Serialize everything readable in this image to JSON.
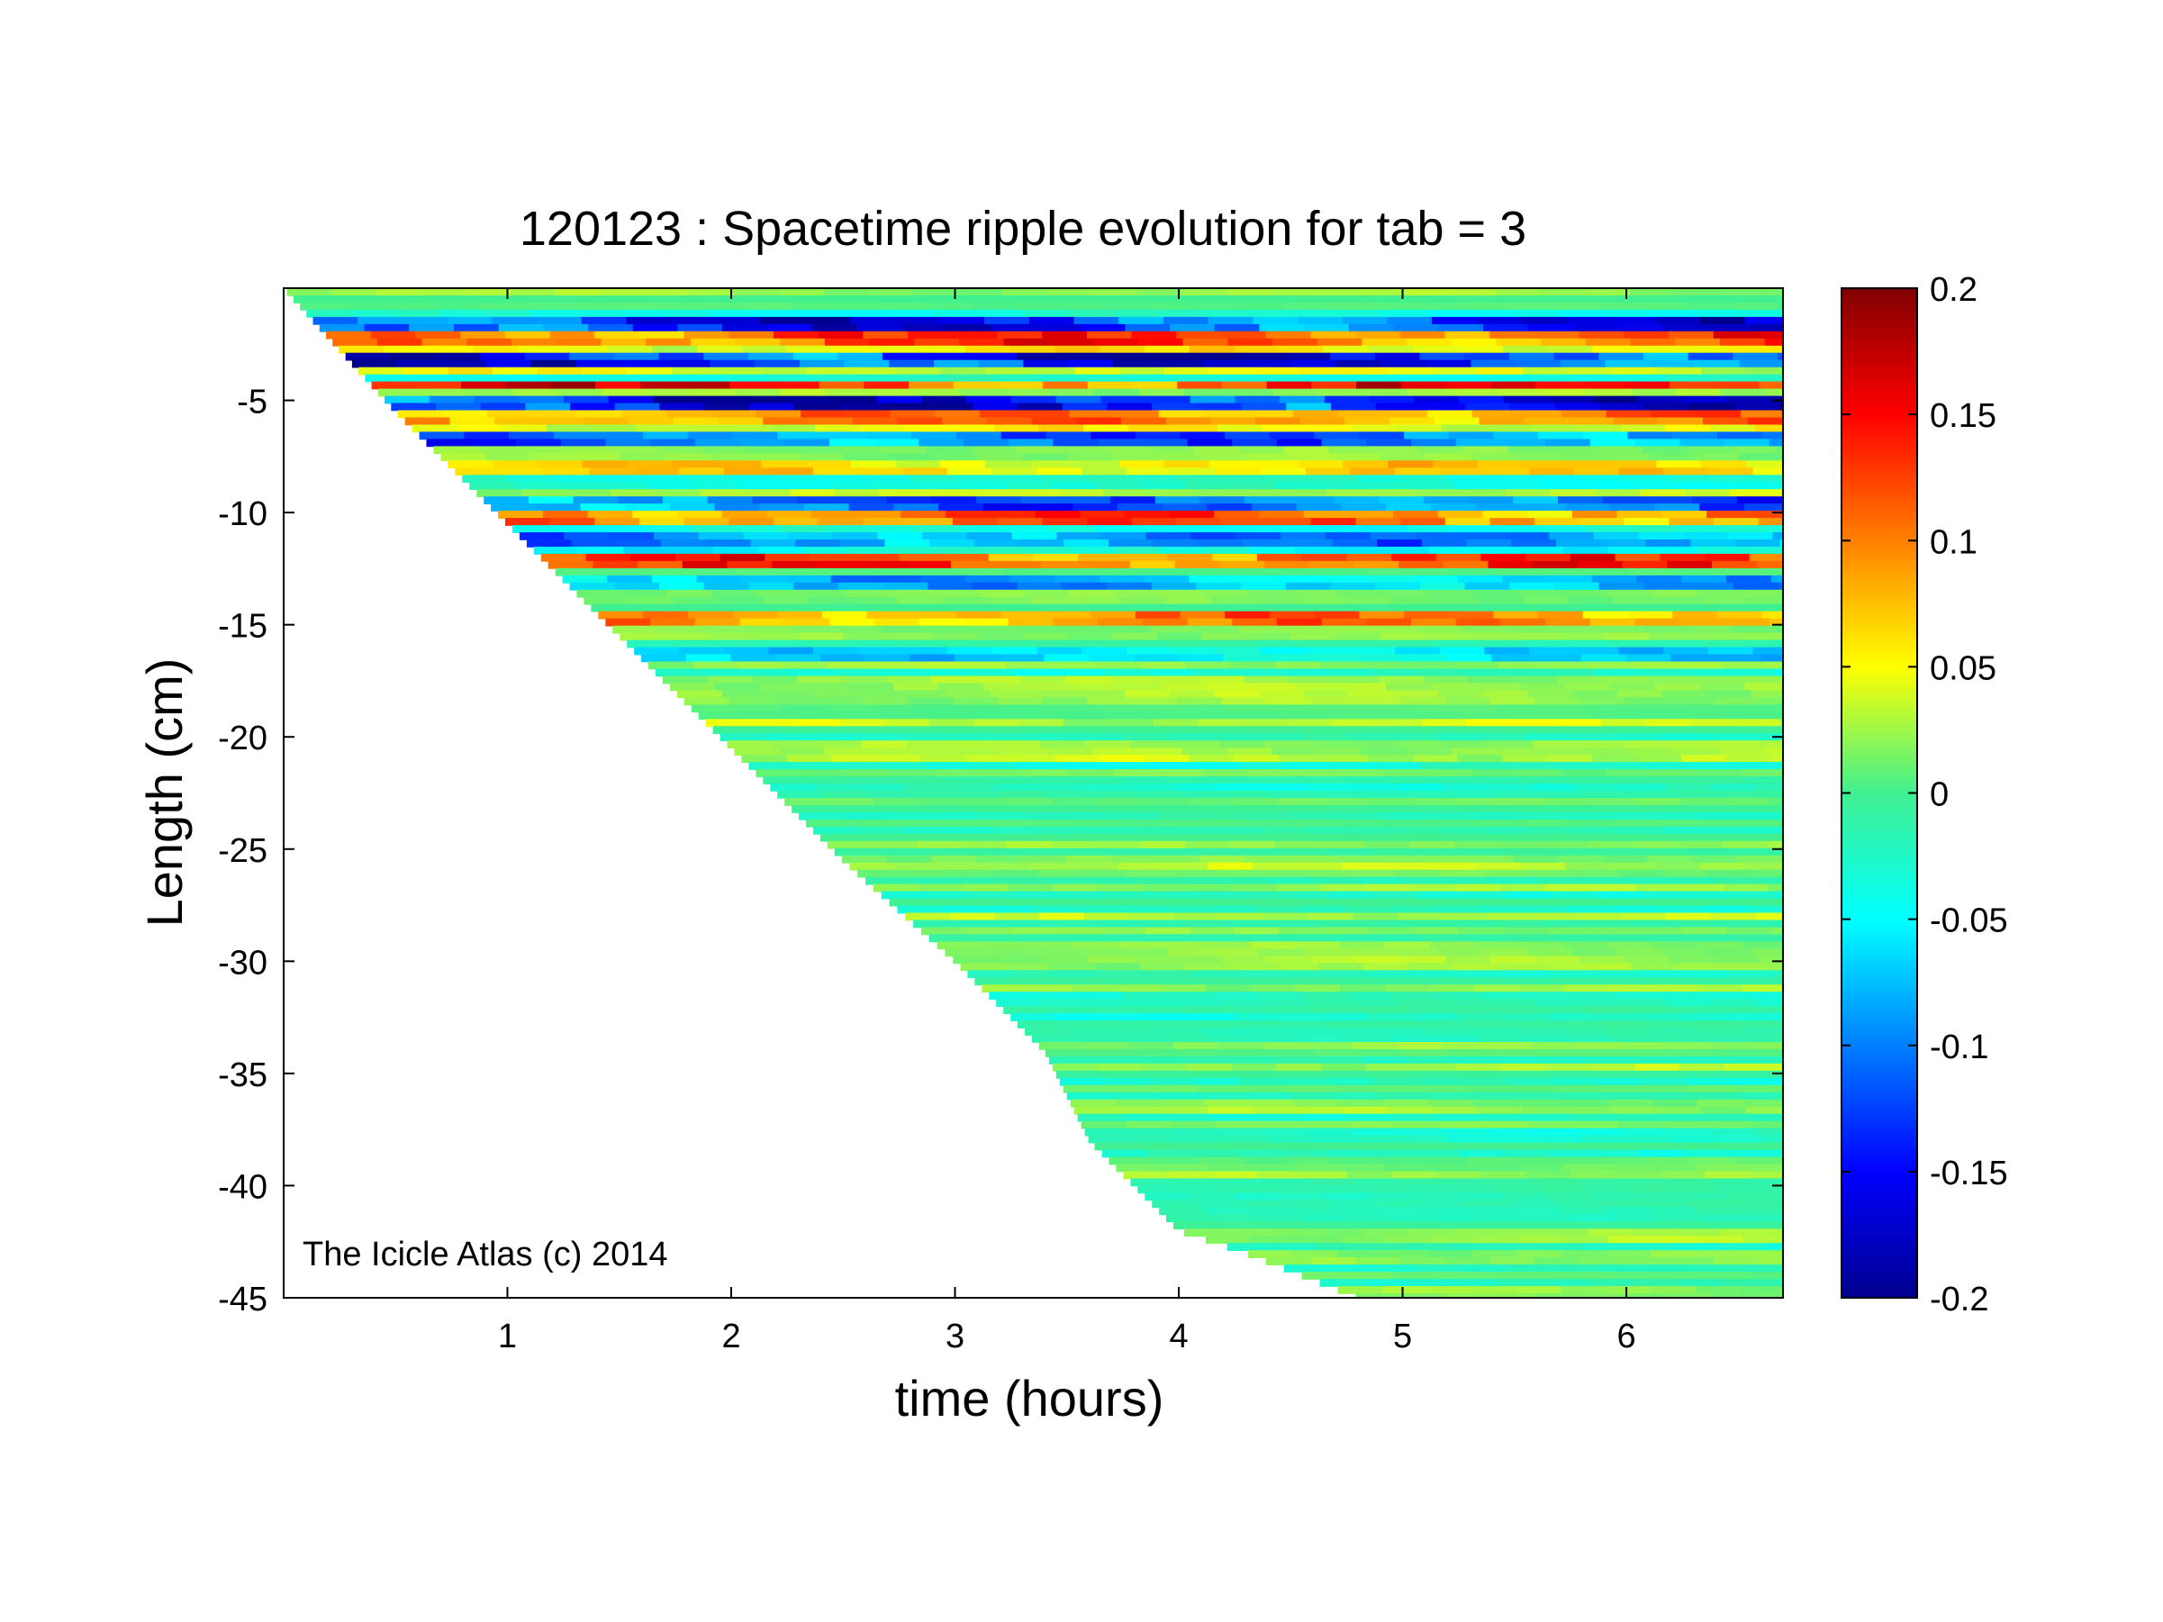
{
  "chart_data": {
    "type": "heatmap",
    "title": "120123 : Spacetime ripple evolution for tab = 3",
    "xlabel": "time (hours)",
    "ylabel": "Length (cm)",
    "xlim": [
      0,
      6.7
    ],
    "ylim": [
      -45,
      0
    ],
    "xticks": [
      1,
      2,
      3,
      4,
      5,
      6
    ],
    "xtick_labels": [
      "1",
      "2",
      "3",
      "4",
      "5",
      "6"
    ],
    "yticks": [
      -5,
      -10,
      -15,
      -20,
      -25,
      -30,
      -35,
      -40,
      -45
    ],
    "ytick_labels": [
      "-5",
      "-10",
      "-15",
      "-20",
      "-25",
      "-30",
      "-35",
      "-40",
      "-45"
    ],
    "colorbar": {
      "colormap": "jet",
      "clim": [
        -0.2,
        0.2
      ],
      "ticks": [
        0.2,
        0.15,
        0.1,
        0.05,
        0,
        -0.05,
        -0.1,
        -0.15,
        -0.2
      ],
      "tick_labels": [
        "0.2",
        "0.15",
        "0.1",
        "0.05",
        "0",
        "-0.05",
        "-0.1",
        "-0.15",
        "-0.2"
      ]
    },
    "data_boundary": {
      "description_points_time": [
        0,
        0.5,
        1.0,
        1.5,
        2.0,
        2.5,
        3.0,
        3.4,
        3.6,
        4.0,
        4.3,
        4.8,
        6.7
      ],
      "description_points_length": [
        0,
        -5.5,
        -10.5,
        -15.5,
        -20.5,
        -25.5,
        -30,
        -34,
        -38,
        -42,
        -43,
        -45,
        -45
      ]
    },
    "strong_ripples": [
      {
        "length": -1.5,
        "amplitude": -0.18
      },
      {
        "length": -2.2,
        "amplitude": 0.15
      },
      {
        "length": -3.2,
        "amplitude": -0.19
      },
      {
        "length": -4.3,
        "amplitude": 0.17
      },
      {
        "length": -5.0,
        "amplitude": -0.2
      },
      {
        "length": -5.8,
        "amplitude": 0.12
      },
      {
        "length": -6.7,
        "amplitude": -0.14
      },
      {
        "length": -8.0,
        "amplitude": 0.08
      },
      {
        "length": -9.5,
        "amplitude": -0.14
      },
      {
        "length": -10.3,
        "amplitude": 0.14
      },
      {
        "length": -11.2,
        "amplitude": -0.12
      },
      {
        "length": -12.3,
        "amplitude": 0.15
      },
      {
        "length": -13.2,
        "amplitude": -0.1
      },
      {
        "length": -14.7,
        "amplitude": 0.12
      },
      {
        "length": -16.2,
        "amplitude": -0.08
      }
    ]
  },
  "watermark": "The Icicle Atlas (c) 2014"
}
